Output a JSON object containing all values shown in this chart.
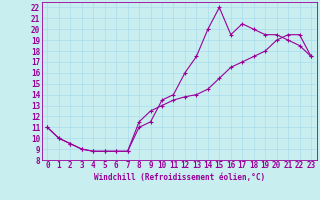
{
  "xlabel": "Windchill (Refroidissement éolien,°C)",
  "bg_color": "#c8eef0",
  "line_color": "#990099",
  "grid_color": "#aaddee",
  "xlim": [
    -0.5,
    23.5
  ],
  "ylim": [
    8,
    22.5
  ],
  "xticks": [
    0,
    1,
    2,
    3,
    4,
    5,
    6,
    7,
    8,
    9,
    10,
    11,
    12,
    13,
    14,
    15,
    16,
    17,
    18,
    19,
    20,
    21,
    22,
    23
  ],
  "yticks": [
    8,
    9,
    10,
    11,
    12,
    13,
    14,
    15,
    16,
    17,
    18,
    19,
    20,
    21,
    22
  ],
  "line1_x": [
    0,
    1,
    2,
    3,
    4,
    5,
    6,
    7,
    8,
    9,
    10,
    11,
    12,
    13,
    14,
    15,
    16,
    17,
    18,
    19,
    20,
    21,
    22,
    23
  ],
  "line1_y": [
    11,
    10,
    9.5,
    9,
    8.8,
    8.8,
    8.8,
    8.8,
    11,
    11.5,
    13.5,
    14,
    16,
    17.5,
    20,
    22,
    19.5,
    20.5,
    20,
    19.5,
    19.5,
    19,
    18.5,
    17.5
  ],
  "line2_x": [
    0,
    1,
    2,
    3,
    4,
    5,
    6,
    7,
    8,
    9,
    10,
    11,
    12,
    13,
    14,
    15,
    16,
    17,
    18,
    19,
    20,
    21,
    22,
    23
  ],
  "line2_y": [
    11,
    10,
    9.5,
    9,
    8.8,
    8.8,
    8.8,
    8.8,
    11.5,
    12.5,
    13.0,
    13.5,
    13.8,
    14.0,
    14.5,
    15.5,
    16.5,
    17.0,
    17.5,
    18.0,
    19.0,
    19.5,
    19.5,
    17.5
  ],
  "font_size": 5.5,
  "marker": "+"
}
